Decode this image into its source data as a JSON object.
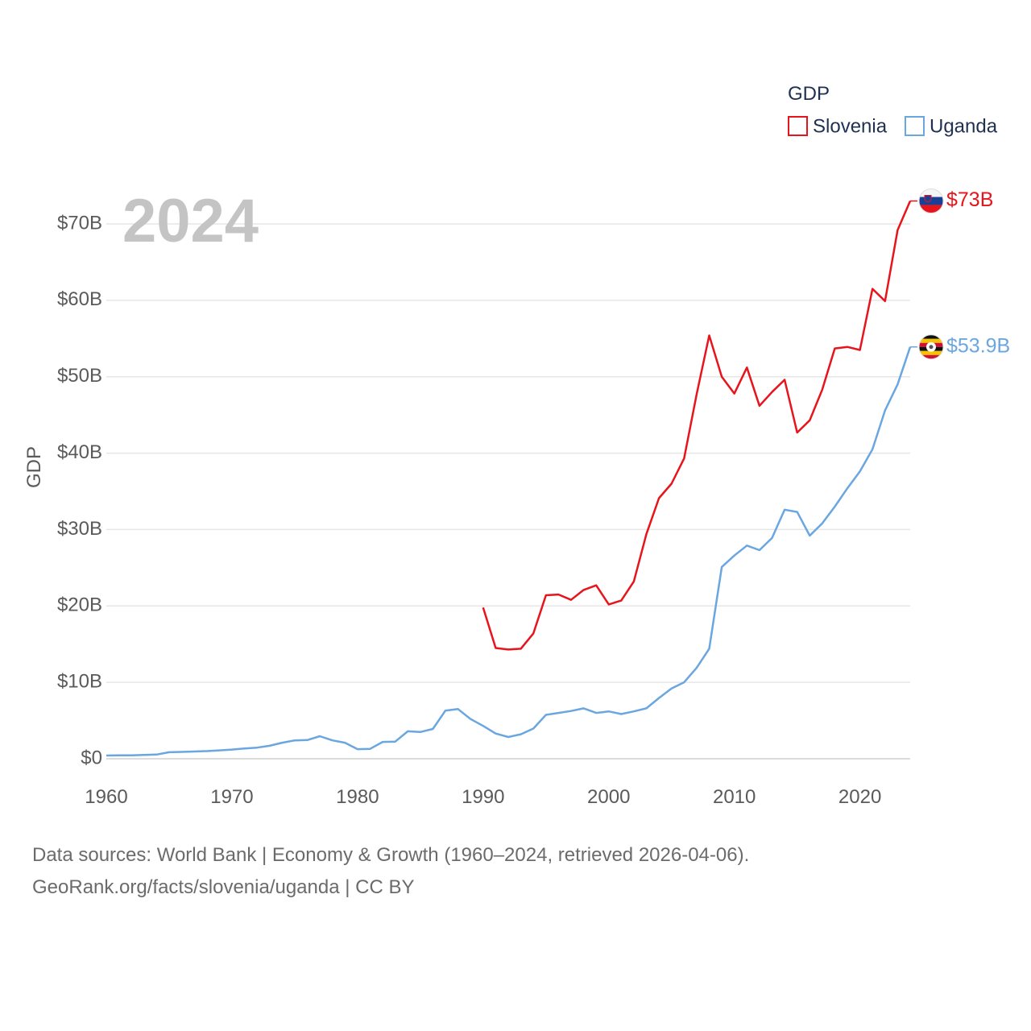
{
  "chart_data": {
    "type": "line",
    "title": "GDP",
    "ylabel": "GDP",
    "xlim": [
      1960,
      2024
    ],
    "ylim": [
      0,
      75
    ],
    "y_unit": "billion USD",
    "year_label": "2024",
    "legend": {
      "title": "GDP",
      "position": "top-right"
    },
    "x_ticks": [
      1960,
      1970,
      1980,
      1990,
      2000,
      2010,
      2020
    ],
    "x_tick_labels": [
      "1960",
      "1970",
      "1980",
      "1990",
      "2000",
      "2010",
      "2020"
    ],
    "y_ticks": [
      0,
      10,
      20,
      30,
      40,
      50,
      60,
      70
    ],
    "y_tick_labels": [
      "$0",
      "$10B",
      "$20B",
      "$30B",
      "$40B",
      "$50B",
      "$60B",
      "$70B"
    ],
    "grid": true,
    "series": [
      {
        "name": "Slovenia",
        "color": "#e8141b",
        "end_label": "$73B",
        "flag_icon": "slovenia-flag-icon",
        "x": [
          1990,
          1991,
          1992,
          1993,
          1994,
          1995,
          1996,
          1997,
          1998,
          1999,
          2000,
          2001,
          2002,
          2003,
          2004,
          2005,
          2006,
          2007,
          2008,
          2009,
          2010,
          2011,
          2012,
          2013,
          2014,
          2015,
          2016,
          2017,
          2018,
          2019,
          2020,
          2021,
          2022,
          2023,
          2024
        ],
        "values": [
          19.8,
          14.5,
          14.3,
          14.4,
          16.4,
          21.4,
          21.5,
          20.8,
          22.1,
          22.7,
          20.2,
          20.7,
          23.2,
          29.4,
          34.1,
          36.0,
          39.3,
          47.7,
          55.4,
          50.0,
          47.8,
          51.2,
          46.2,
          48.0,
          49.6,
          42.7,
          44.3,
          48.3,
          53.7,
          53.9,
          53.5,
          61.5,
          59.9,
          69.2,
          73.0
        ]
      },
      {
        "name": "Uganda",
        "color": "#6aa6e0",
        "end_label": "$53.9B",
        "flag_icon": "uganda-flag-icon",
        "x": [
          1960,
          1961,
          1962,
          1963,
          1964,
          1965,
          1966,
          1967,
          1968,
          1969,
          1970,
          1971,
          1972,
          1973,
          1974,
          1975,
          1976,
          1977,
          1978,
          1979,
          1980,
          1981,
          1982,
          1983,
          1984,
          1985,
          1986,
          1987,
          1988,
          1989,
          1990,
          1991,
          1992,
          1993,
          1994,
          1995,
          1996,
          1997,
          1998,
          1999,
          2000,
          2001,
          2002,
          2003,
          2004,
          2005,
          2006,
          2007,
          2008,
          2009,
          2010,
          2011,
          2012,
          2013,
          2014,
          2015,
          2016,
          2017,
          2018,
          2019,
          2020,
          2021,
          2022,
          2023,
          2024
        ],
        "values": [
          0.42,
          0.45,
          0.45,
          0.5,
          0.55,
          0.85,
          0.9,
          0.95,
          1.0,
          1.1,
          1.2,
          1.35,
          1.45,
          1.7,
          2.1,
          2.4,
          2.45,
          2.95,
          2.4,
          2.1,
          1.25,
          1.3,
          2.2,
          2.25,
          3.6,
          3.5,
          3.9,
          6.3,
          6.5,
          5.2,
          4.3,
          3.3,
          2.85,
          3.2,
          3.95,
          5.75,
          6.0,
          6.25,
          6.6,
          6.0,
          6.2,
          5.85,
          6.2,
          6.6,
          7.95,
          9.2,
          10.0,
          11.9,
          14.4,
          25.1,
          26.6,
          27.9,
          27.3,
          28.9,
          32.6,
          32.3,
          29.2,
          30.8,
          33.0,
          35.4,
          37.6,
          40.5,
          45.6,
          49.0,
          53.9
        ]
      }
    ]
  },
  "footer": {
    "line1": "Data sources: World Bank | Economy & Growth (1960–2024, retrieved 2026-04-06).",
    "line2": "GeoRank.org/facts/slovenia/uganda | CC BY"
  }
}
